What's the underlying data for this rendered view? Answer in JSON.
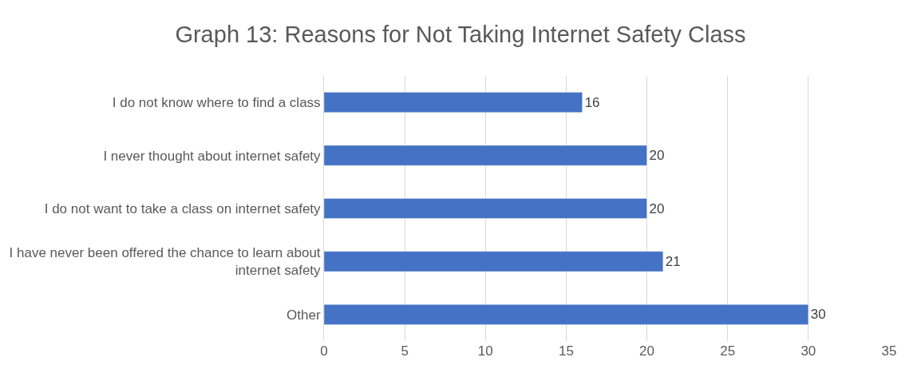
{
  "chart_data": {
    "type": "bar",
    "orientation": "horizontal",
    "title": "Graph 13: Reasons for Not Taking Internet Safety Class",
    "categories": [
      "I do not know where to find a class",
      "I never thought about internet safety",
      "I do not want to take a class on internet safety",
      "I have never been offered the chance to learn about internet safety",
      "Other"
    ],
    "values": [
      16,
      20,
      20,
      21,
      30
    ],
    "color": "#4472c4",
    "xlim": [
      0,
      35
    ],
    "xticks": [
      0,
      5,
      10,
      15,
      20,
      25,
      30,
      35
    ],
    "grid": "x",
    "data_labels": true,
    "legend": false
  }
}
